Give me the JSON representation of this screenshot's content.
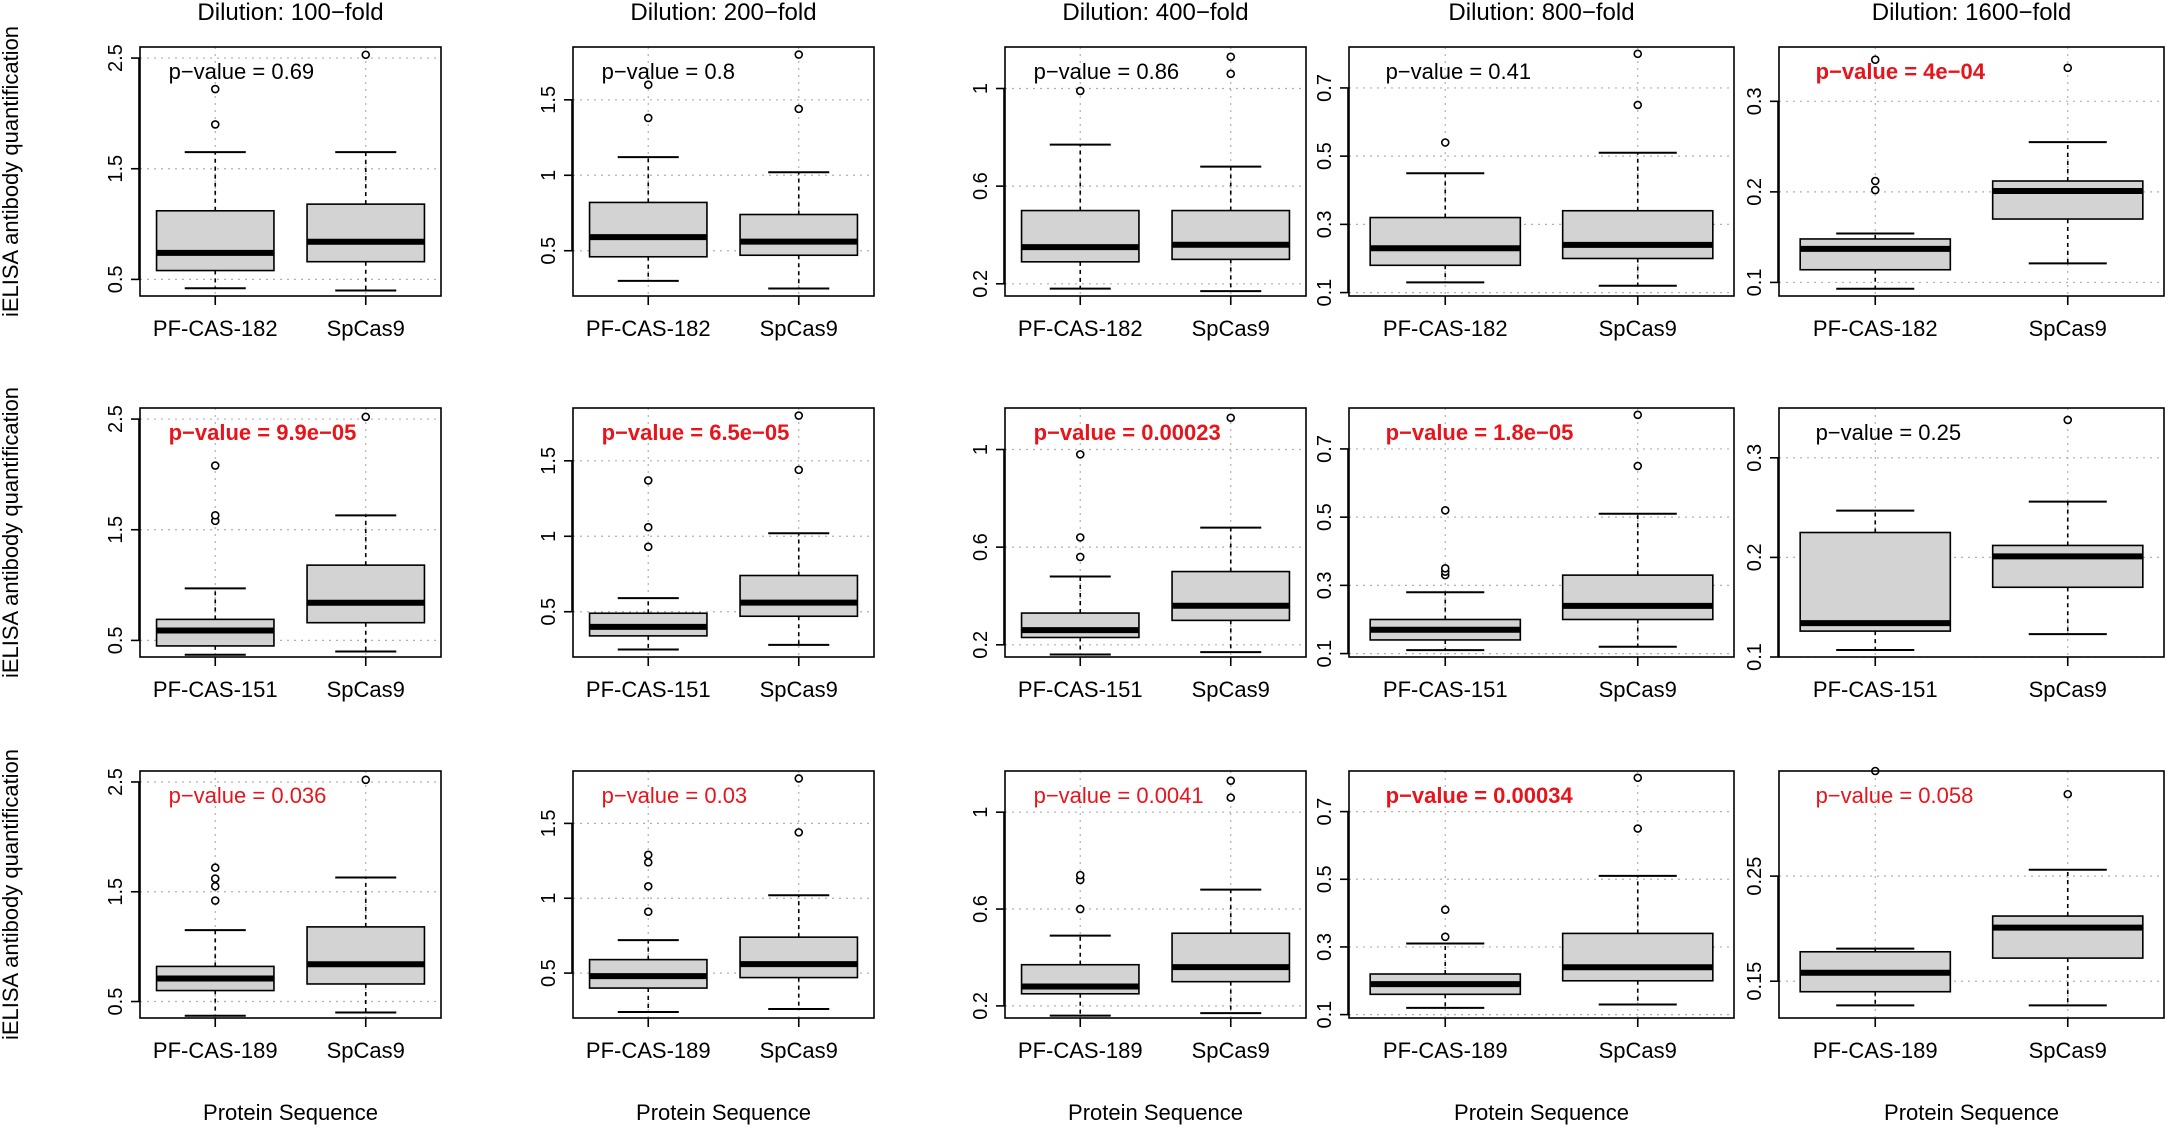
{
  "figure": {
    "ylabel": "iELISA antibody quantification",
    "xlabel": "Protein Sequence",
    "column_titles": [
      "Dilution: 100−fold",
      "Dilution: 200−fold",
      "Dilution: 400−fold",
      "Dilution: 800−fold",
      "Dilution: 1600−fold"
    ],
    "colors": {
      "box_fill": "#d3d3d3",
      "significant_text": "#e8141b",
      "normal_text": "#000000",
      "grid": "#b0b0b0"
    }
  },
  "chart_data": [
    {
      "type": "box",
      "row": 0,
      "col": 0,
      "title": "Dilution: 100−fold",
      "categories": [
        "PF-CAS-182",
        "SpCas9"
      ],
      "ylim": [
        0.35,
        2.6
      ],
      "yticks": [
        0.5,
        1.5,
        2.5
      ],
      "annotation": {
        "text": "p−value = 0.69",
        "style": "normal"
      },
      "boxes": [
        {
          "name": "PF-CAS-182",
          "whisker_low": 0.42,
          "q1": 0.58,
          "median": 0.74,
          "q3": 1.12,
          "whisker_high": 1.65,
          "outliers": [
            1.9,
            2.22
          ]
        },
        {
          "name": "SpCas9",
          "whisker_low": 0.4,
          "q1": 0.66,
          "median": 0.84,
          "q3": 1.18,
          "whisker_high": 1.65,
          "outliers": [
            2.53
          ]
        }
      ]
    },
    {
      "type": "box",
      "row": 0,
      "col": 1,
      "title": "Dilution: 200−fold",
      "categories": [
        "PF-CAS-182",
        "SpCas9"
      ],
      "ylim": [
        0.2,
        1.85
      ],
      "yticks": [
        0.5,
        1.0,
        1.5
      ],
      "annotation": {
        "text": "p−value = 0.8",
        "style": "normal"
      },
      "boxes": [
        {
          "name": "PF-CAS-182",
          "whisker_low": 0.3,
          "q1": 0.46,
          "median": 0.59,
          "q3": 0.82,
          "whisker_high": 1.12,
          "outliers": [
            1.38,
            1.6
          ]
        },
        {
          "name": "SpCas9",
          "whisker_low": 0.25,
          "q1": 0.47,
          "median": 0.56,
          "q3": 0.74,
          "whisker_high": 1.02,
          "outliers": [
            1.44,
            1.8
          ]
        }
      ]
    },
    {
      "type": "box",
      "row": 0,
      "col": 2,
      "title": "Dilution: 400−fold",
      "categories": [
        "PF-CAS-182",
        "SpCas9"
      ],
      "ylim": [
        0.15,
        1.17
      ],
      "yticks": [
        0.2,
        0.6,
        1.0
      ],
      "annotation": {
        "text": "p−value = 0.86",
        "style": "normal"
      },
      "boxes": [
        {
          "name": "PF-CAS-182",
          "whisker_low": 0.18,
          "q1": 0.29,
          "median": 0.35,
          "q3": 0.5,
          "whisker_high": 0.77,
          "outliers": [
            0.99
          ]
        },
        {
          "name": "SpCas9",
          "whisker_low": 0.17,
          "q1": 0.3,
          "median": 0.36,
          "q3": 0.5,
          "whisker_high": 0.68,
          "outliers": [
            1.06,
            1.13
          ]
        }
      ]
    },
    {
      "type": "box",
      "row": 0,
      "col": 3,
      "title": "Dilution: 800−fold",
      "categories": [
        "PF-CAS-182",
        "SpCas9"
      ],
      "ylim": [
        0.09,
        0.82
      ],
      "yticks": [
        0.1,
        0.3,
        0.5,
        0.7
      ],
      "annotation": {
        "text": "p−value = 0.41",
        "style": "normal"
      },
      "boxes": [
        {
          "name": "PF-CAS-182",
          "whisker_low": 0.13,
          "q1": 0.18,
          "median": 0.23,
          "q3": 0.32,
          "whisker_high": 0.45,
          "outliers": [
            0.54
          ]
        },
        {
          "name": "SpCas9",
          "whisker_low": 0.12,
          "q1": 0.2,
          "median": 0.24,
          "q3": 0.34,
          "whisker_high": 0.51,
          "outliers": [
            0.65,
            0.8
          ]
        }
      ]
    },
    {
      "type": "box",
      "row": 0,
      "col": 4,
      "title": "Dilution: 1600−fold",
      "categories": [
        "PF-CAS-182",
        "SpCas9"
      ],
      "ylim": [
        0.085,
        0.36
      ],
      "yticks": [
        0.1,
        0.2,
        0.3
      ],
      "annotation": {
        "text": "p−value = 4e−04",
        "style": "significant"
      },
      "boxes": [
        {
          "name": "PF-CAS-182",
          "whisker_low": 0.093,
          "q1": 0.114,
          "median": 0.137,
          "q3": 0.148,
          "whisker_high": 0.154,
          "outliers": [
            0.202,
            0.212,
            0.346
          ]
        },
        {
          "name": "SpCas9",
          "whisker_low": 0.121,
          "q1": 0.17,
          "median": 0.201,
          "q3": 0.212,
          "whisker_high": 0.255,
          "outliers": [
            0.337
          ]
        }
      ]
    },
    {
      "type": "box",
      "row": 1,
      "col": 0,
      "title": "",
      "categories": [
        "PF-CAS-151",
        "SpCas9"
      ],
      "ylim": [
        0.35,
        2.6
      ],
      "yticks": [
        0.5,
        1.5,
        2.5
      ],
      "annotation": {
        "text": "p−value = 9.9e−05",
        "style": "significant"
      },
      "boxes": [
        {
          "name": "PF-CAS-151",
          "whisker_low": 0.37,
          "q1": 0.45,
          "median": 0.59,
          "q3": 0.69,
          "whisker_high": 0.97,
          "outliers": [
            1.58,
            1.63,
            2.08
          ]
        },
        {
          "name": "SpCas9",
          "whisker_low": 0.4,
          "q1": 0.66,
          "median": 0.84,
          "q3": 1.18,
          "whisker_high": 1.63,
          "outliers": [
            2.52
          ]
        }
      ]
    },
    {
      "type": "box",
      "row": 1,
      "col": 1,
      "title": "",
      "categories": [
        "PF-CAS-151",
        "SpCas9"
      ],
      "ylim": [
        0.2,
        1.85
      ],
      "yticks": [
        0.5,
        1.0,
        1.5
      ],
      "annotation": {
        "text": "p−value = 6.5e−05",
        "style": "significant"
      },
      "boxes": [
        {
          "name": "PF-CAS-151",
          "whisker_low": 0.25,
          "q1": 0.34,
          "median": 0.4,
          "q3": 0.49,
          "whisker_high": 0.59,
          "outliers": [
            0.93,
            1.06,
            1.37
          ]
        },
        {
          "name": "SpCas9",
          "whisker_low": 0.28,
          "q1": 0.47,
          "median": 0.56,
          "q3": 0.74,
          "whisker_high": 1.02,
          "outliers": [
            1.44,
            1.8
          ]
        }
      ]
    },
    {
      "type": "box",
      "row": 1,
      "col": 2,
      "title": "",
      "categories": [
        "PF-CAS-151",
        "SpCas9"
      ],
      "ylim": [
        0.15,
        1.17
      ],
      "yticks": [
        0.2,
        0.6,
        1.0
      ],
      "annotation": {
        "text": "p−value = 0.00023",
        "style": "significant"
      },
      "boxes": [
        {
          "name": "PF-CAS-151",
          "whisker_low": 0.16,
          "q1": 0.23,
          "median": 0.26,
          "q3": 0.33,
          "whisker_high": 0.48,
          "outliers": [
            0.56,
            0.64,
            0.98
          ]
        },
        {
          "name": "SpCas9",
          "whisker_low": 0.17,
          "q1": 0.3,
          "median": 0.36,
          "q3": 0.5,
          "whisker_high": 0.68,
          "outliers": [
            1.13
          ]
        }
      ]
    },
    {
      "type": "box",
      "row": 1,
      "col": 3,
      "title": "",
      "categories": [
        "PF-CAS-151",
        "SpCas9"
      ],
      "ylim": [
        0.09,
        0.82
      ],
      "yticks": [
        0.1,
        0.3,
        0.5,
        0.7
      ],
      "annotation": {
        "text": "p−value = 1.8e−05",
        "style": "significant"
      },
      "boxes": [
        {
          "name": "PF-CAS-151",
          "whisker_low": 0.11,
          "q1": 0.14,
          "median": 0.17,
          "q3": 0.2,
          "whisker_high": 0.28,
          "outliers": [
            0.33,
            0.34,
            0.35,
            0.52
          ]
        },
        {
          "name": "SpCas9",
          "whisker_low": 0.12,
          "q1": 0.2,
          "median": 0.24,
          "q3": 0.33,
          "whisker_high": 0.51,
          "outliers": [
            0.65,
            0.8
          ]
        }
      ]
    },
    {
      "type": "box",
      "row": 1,
      "col": 4,
      "title": "",
      "categories": [
        "PF-CAS-151",
        "SpCas9"
      ],
      "ylim": [
        0.1,
        0.35
      ],
      "yticks": [
        0.1,
        0.2,
        0.3
      ],
      "annotation": {
        "text": "p−value = 0.25",
        "style": "normal"
      },
      "boxes": [
        {
          "name": "PF-CAS-151",
          "whisker_low": 0.107,
          "q1": 0.126,
          "median": 0.134,
          "q3": 0.225,
          "whisker_high": 0.247,
          "outliers": []
        },
        {
          "name": "SpCas9",
          "whisker_low": 0.123,
          "q1": 0.17,
          "median": 0.201,
          "q3": 0.212,
          "whisker_high": 0.256,
          "outliers": [
            0.338
          ]
        }
      ]
    },
    {
      "type": "box",
      "row": 2,
      "col": 0,
      "title": "",
      "categories": [
        "PF-CAS-189",
        "SpCas9"
      ],
      "ylim": [
        0.35,
        2.6
      ],
      "yticks": [
        0.5,
        1.5,
        2.5
      ],
      "annotation": {
        "text": "p−value = 0.036",
        "style": "light"
      },
      "boxes": [
        {
          "name": "PF-CAS-189",
          "whisker_low": 0.37,
          "q1": 0.6,
          "median": 0.71,
          "q3": 0.82,
          "whisker_high": 1.15,
          "outliers": [
            1.42,
            1.55,
            1.62,
            1.72
          ]
        },
        {
          "name": "SpCas9",
          "whisker_low": 0.4,
          "q1": 0.66,
          "median": 0.84,
          "q3": 1.18,
          "whisker_high": 1.63,
          "outliers": [
            2.52
          ]
        }
      ]
    },
    {
      "type": "box",
      "row": 2,
      "col": 1,
      "title": "",
      "categories": [
        "PF-CAS-189",
        "SpCas9"
      ],
      "ylim": [
        0.2,
        1.85
      ],
      "yticks": [
        0.5,
        1.0,
        1.5
      ],
      "annotation": {
        "text": "p−value = 0.03",
        "style": "light"
      },
      "boxes": [
        {
          "name": "PF-CAS-189",
          "whisker_low": 0.24,
          "q1": 0.4,
          "median": 0.48,
          "q3": 0.59,
          "whisker_high": 0.72,
          "outliers": [
            0.91,
            1.08,
            1.24,
            1.29
          ]
        },
        {
          "name": "SpCas9",
          "whisker_low": 0.26,
          "q1": 0.47,
          "median": 0.56,
          "q3": 0.74,
          "whisker_high": 1.02,
          "outliers": [
            1.44,
            1.8
          ]
        }
      ]
    },
    {
      "type": "box",
      "row": 2,
      "col": 2,
      "title": "",
      "categories": [
        "PF-CAS-189",
        "SpCas9"
      ],
      "ylim": [
        0.15,
        1.17
      ],
      "yticks": [
        0.2,
        0.6,
        1.0
      ],
      "annotation": {
        "text": "p−value = 0.0041",
        "style": "light"
      },
      "boxes": [
        {
          "name": "PF-CAS-189",
          "whisker_low": 0.16,
          "q1": 0.25,
          "median": 0.28,
          "q3": 0.37,
          "whisker_high": 0.49,
          "outliers": [
            0.6,
            0.72,
            0.74
          ]
        },
        {
          "name": "SpCas9",
          "whisker_low": 0.17,
          "q1": 0.3,
          "median": 0.36,
          "q3": 0.5,
          "whisker_high": 0.68,
          "outliers": [
            1.06,
            1.13
          ]
        }
      ]
    },
    {
      "type": "box",
      "row": 2,
      "col": 3,
      "title": "",
      "categories": [
        "PF-CAS-189",
        "SpCas9"
      ],
      "ylim": [
        0.09,
        0.82
      ],
      "yticks": [
        0.1,
        0.3,
        0.5,
        0.7
      ],
      "annotation": {
        "text": "p−value = 0.00034",
        "style": "significant"
      },
      "boxes": [
        {
          "name": "PF-CAS-189",
          "whisker_low": 0.12,
          "q1": 0.16,
          "median": 0.19,
          "q3": 0.22,
          "whisker_high": 0.31,
          "outliers": [
            0.33,
            0.41
          ]
        },
        {
          "name": "SpCas9",
          "whisker_low": 0.13,
          "q1": 0.2,
          "median": 0.24,
          "q3": 0.34,
          "whisker_high": 0.51,
          "outliers": [
            0.65,
            0.8
          ]
        }
      ]
    },
    {
      "type": "box",
      "row": 2,
      "col": 4,
      "title": "",
      "categories": [
        "PF-CAS-189",
        "SpCas9"
      ],
      "ylim": [
        0.115,
        0.35
      ],
      "yticks": [
        0.15,
        0.25
      ],
      "annotation": {
        "text": "p−value = 0.058",
        "style": "light"
      },
      "boxes": [
        {
          "name": "PF-CAS-189",
          "whisker_low": 0.127,
          "q1": 0.14,
          "median": 0.158,
          "q3": 0.178,
          "whisker_high": 0.181,
          "outliers": [
            0.35
          ]
        },
        {
          "name": "SpCas9",
          "whisker_low": 0.127,
          "q1": 0.172,
          "median": 0.201,
          "q3": 0.212,
          "whisker_high": 0.256,
          "outliers": [
            0.328
          ]
        }
      ]
    }
  ]
}
